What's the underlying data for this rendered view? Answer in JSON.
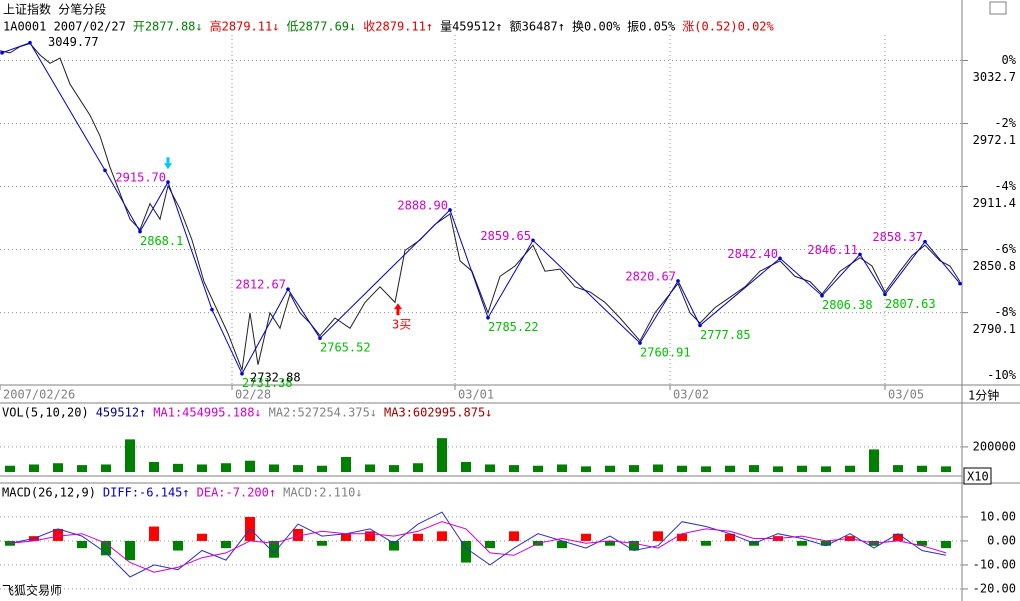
{
  "header": {
    "title": "上证指数 分笔分段",
    "info": [
      {
        "text": "1A0001 2007/02/27",
        "color": "#000000"
      },
      {
        "text": "开2877.88↓",
        "color": "#008000"
      },
      {
        "text": "高2879.11↓",
        "color": "#e00000"
      },
      {
        "text": "低2877.69↓",
        "color": "#008000"
      },
      {
        "text": "收2879.11↑",
        "color": "#e00000"
      },
      {
        "text": "量459512↑",
        "color": "#000000"
      },
      {
        "text": "额36487↑",
        "color": "#000000"
      },
      {
        "text": "换0.00%",
        "color": "#000000"
      },
      {
        "text": "振0.05%",
        "color": "#000000"
      },
      {
        "text": "涨(0.52)0.02%",
        "color": "#e00000"
      }
    ]
  },
  "period": "1分钟",
  "scale_box": "X10",
  "footer": "飞狐交易师",
  "chart_data": [
    {
      "type": "line",
      "xlim": [
        0,
        960
      ],
      "xticks": [
        {
          "value": 0,
          "label": "2007/02/26"
        },
        {
          "value": 232,
          "label": "02/28"
        },
        {
          "value": 455,
          "label": "03/01"
        },
        {
          "value": 670,
          "label": "03/02"
        },
        {
          "value": 885,
          "label": "03/05"
        }
      ],
      "ylim": [
        2720.5,
        3057.2
      ],
      "yticks": [
        3032.7,
        2972.1,
        2911.4,
        2850.8,
        2790.1
      ],
      "y2lim": [
        -10.3,
        0.81
      ],
      "y2ticks": [
        {
          "value": 0,
          "label": "0%"
        },
        {
          "value": -2,
          "label": "-2%"
        },
        {
          "value": -4,
          "label": "-4%"
        },
        {
          "value": -6,
          "label": "-6%"
        },
        {
          "value": -8,
          "label": "-8%"
        },
        {
          "value": -10,
          "label": "-10%"
        }
      ],
      "grid": true,
      "series": [
        {
          "type": "line",
          "color": "#202020",
          "x": [
            0,
            10,
            20,
            30,
            40,
            50,
            60,
            70,
            80,
            90,
            100,
            110,
            120,
            130,
            140,
            150,
            160,
            168,
            180,
            192,
            204,
            216,
            228,
            242,
            250,
            258,
            270,
            280,
            290,
            300,
            310,
            320,
            335,
            350,
            365,
            380,
            395,
            405,
            420,
            435,
            450,
            460,
            472,
            488,
            500,
            515,
            533,
            545,
            560,
            575,
            590,
            605,
            620,
            640,
            655,
            678,
            690,
            700,
            715,
            730,
            745,
            760,
            780,
            795,
            810,
            822,
            840,
            860,
            872,
            885,
            900,
            912,
            925,
            940,
            950,
            960
          ],
          "values": [
            3042,
            3040,
            3046,
            3049,
            3038,
            3030,
            3035,
            3010,
            2995,
            2980,
            2960,
            2930,
            2905,
            2880,
            2870,
            2895,
            2880,
            2912,
            2890,
            2860,
            2820,
            2795,
            2770,
            2735,
            2790,
            2740,
            2790,
            2775,
            2808,
            2790,
            2780,
            2768,
            2785,
            2775,
            2800,
            2815,
            2800,
            2850,
            2860,
            2875,
            2885,
            2840,
            2830,
            2790,
            2825,
            2835,
            2855,
            2830,
            2832,
            2815,
            2810,
            2800,
            2785,
            2763,
            2790,
            2818,
            2790,
            2780,
            2795,
            2805,
            2815,
            2830,
            2840,
            2825,
            2820,
            2808,
            2830,
            2843,
            2835,
            2810,
            2830,
            2845,
            2855,
            2840,
            2835,
            2820
          ]
        },
        {
          "type": "zigzag",
          "color": "#0000d0",
          "x": [
            2,
            30,
            105,
            140,
            168,
            212,
            242,
            288,
            320,
            450,
            488,
            533,
            640,
            678,
            700,
            780,
            822,
            860,
            885,
            925,
            960
          ],
          "values": [
            3040,
            3049.77,
            2927,
            2868.1,
            2915.7,
            2793,
            2731.38,
            2812.67,
            2765.52,
            2888.9,
            2785.22,
            2859.65,
            2760.91,
            2820.67,
            2777.85,
            2842.4,
            2806.38,
            2846.11,
            2807.63,
            2858.37,
            2818
          ],
          "value_labels": [
            null,
            "3049.77",
            null,
            "2868.1",
            "2915.70",
            null,
            "2731.38",
            "2812.67",
            "2765.52",
            "2888.90",
            "2785.22",
            "2859.65",
            "2760.91",
            "2820.67",
            "2777.85",
            "2842.40",
            "2806.38",
            "2846.11",
            "2807.63",
            "2858.37",
            null
          ],
          "label_colors": [
            null,
            "#000000",
            null,
            "#00c000",
            "#d000d0",
            null,
            "#00c000",
            "#d000d0",
            "#00c000",
            "#d000d0",
            "#00c000",
            "#d000d0",
            "#00c000",
            "#d000d0",
            "#00c000",
            "#d000d0",
            "#00c000",
            "#d000d0",
            "#00c000",
            "#d000d0",
            null
          ]
        }
      ],
      "annotations": [
        {
          "text": "2732.88",
          "x": 250,
          "y": 2727,
          "color": "#000000"
        },
        {
          "text": "3买",
          "x": 392,
          "y": 2778,
          "color": "#ff0000",
          "arrow": "#ff0000"
        },
        {
          "x": 168,
          "y": 2928,
          "arrow": "#00c8ff"
        }
      ]
    },
    {
      "type": "bar",
      "header": [
        {
          "text": "VOL(5,10,20)",
          "color": "#000000"
        },
        {
          "text": "459512↑",
          "color": "#000080"
        },
        {
          "text": "MA1:454995.188↓",
          "color": "#d000d0"
        },
        {
          "text": "MA2:527254.375↓",
          "color": "#808080"
        },
        {
          "text": "MA3:602995.875↓",
          "color": "#a00000"
        }
      ],
      "xlim": [
        0,
        960
      ],
      "ylim": [
        0,
        550000
      ],
      "yticks": [
        200000
      ],
      "series": [
        {
          "type": "bar",
          "color": "#008000",
          "x": [
            10,
            34,
            58,
            82,
            106,
            130,
            154,
            178,
            202,
            226,
            250,
            274,
            298,
            322,
            346,
            370,
            394,
            418,
            442,
            466,
            490,
            514,
            538,
            562,
            586,
            610,
            634,
            658,
            682,
            706,
            730,
            754,
            778,
            802,
            826,
            850,
            874,
            898,
            922,
            946
          ],
          "values": [
            50000,
            60000,
            70000,
            55000,
            60000,
            260000,
            80000,
            65000,
            60000,
            70000,
            90000,
            60000,
            55000,
            50000,
            120000,
            60000,
            55000,
            70000,
            270000,
            80000,
            60000,
            55000,
            50000,
            60000,
            45000,
            50000,
            55000,
            60000,
            50000,
            45000,
            50000,
            55000,
            45000,
            50000,
            45000,
            50000,
            180000,
            55000,
            50000,
            45000
          ]
        }
      ]
    },
    {
      "type": "combo",
      "header": [
        {
          "text": "MACD(26,12,9)",
          "color": "#000000"
        },
        {
          "text": "DIFF:-6.145↑",
          "color": "#0000c0"
        },
        {
          "text": "DEA:-7.200↑",
          "color": "#d000d0"
        },
        {
          "text": "MACD:2.110↓",
          "color": "#808080"
        }
      ],
      "xlim": [
        0,
        960
      ],
      "ylim": [
        -24.6,
        23.3
      ],
      "yticks": [
        {
          "value": 10,
          "label": "10.00"
        },
        {
          "value": 0,
          "label": "0.00"
        },
        {
          "value": -10,
          "label": "-10.00"
        },
        {
          "value": -20,
          "label": "-20.00"
        }
      ],
      "up_color": "#ff0000",
      "down_color": "#008000",
      "series": [
        {
          "type": "hist",
          "x": [
            10,
            34,
            58,
            82,
            106,
            130,
            154,
            178,
            202,
            226,
            250,
            274,
            298,
            322,
            346,
            370,
            394,
            418,
            442,
            466,
            490,
            514,
            538,
            562,
            586,
            610,
            634,
            658,
            682,
            706,
            730,
            754,
            778,
            802,
            826,
            850,
            874,
            898,
            922,
            946
          ],
          "values": [
            -2,
            2,
            5,
            -3,
            -6,
            -8,
            6,
            -4,
            3,
            -3,
            10,
            -7,
            5,
            -2,
            3,
            4,
            -4,
            3,
            4,
            -9,
            -3,
            4,
            -2,
            -3,
            3,
            -2,
            -4,
            4,
            3,
            -2,
            3,
            -2,
            2,
            -2,
            -2,
            2,
            -2,
            3,
            -2,
            -3
          ]
        },
        {
          "type": "line",
          "color": "#3030c0",
          "x": [
            10,
            34,
            58,
            82,
            106,
            130,
            154,
            178,
            202,
            226,
            250,
            274,
            298,
            322,
            346,
            370,
            394,
            418,
            442,
            466,
            490,
            514,
            538,
            562,
            586,
            610,
            634,
            658,
            682,
            706,
            730,
            754,
            778,
            802,
            826,
            850,
            874,
            898,
            922,
            946
          ],
          "values": [
            -1,
            1,
            5,
            2,
            -5,
            -15,
            -10,
            -12,
            -4,
            -8,
            5,
            -5,
            7,
            2,
            3,
            5,
            -1,
            7,
            12,
            -3,
            -10,
            -3,
            3,
            0,
            -3,
            2,
            -4,
            -2,
            8,
            6,
            3,
            -1,
            3,
            1,
            -2,
            3,
            -3,
            3,
            -4,
            -6
          ]
        },
        {
          "type": "line",
          "color": "#d000d0",
          "x": [
            10,
            34,
            58,
            82,
            106,
            130,
            154,
            178,
            202,
            226,
            250,
            274,
            298,
            322,
            346,
            370,
            394,
            418,
            442,
            466,
            490,
            514,
            538,
            562,
            586,
            610,
            634,
            658,
            682,
            706,
            730,
            754,
            778,
            802,
            826,
            850,
            874,
            898,
            922,
            946
          ],
          "values": [
            -1,
            0,
            2,
            3,
            -1,
            -9,
            -13,
            -11,
            -7,
            -5,
            0,
            -1,
            2,
            4,
            3,
            3,
            2,
            4,
            8,
            5,
            -5,
            -6,
            -1,
            1,
            -1,
            0,
            -1,
            -3,
            3,
            5,
            4,
            1,
            1,
            2,
            0,
            1,
            -1,
            0,
            -2,
            -5
          ]
        }
      ]
    }
  ]
}
